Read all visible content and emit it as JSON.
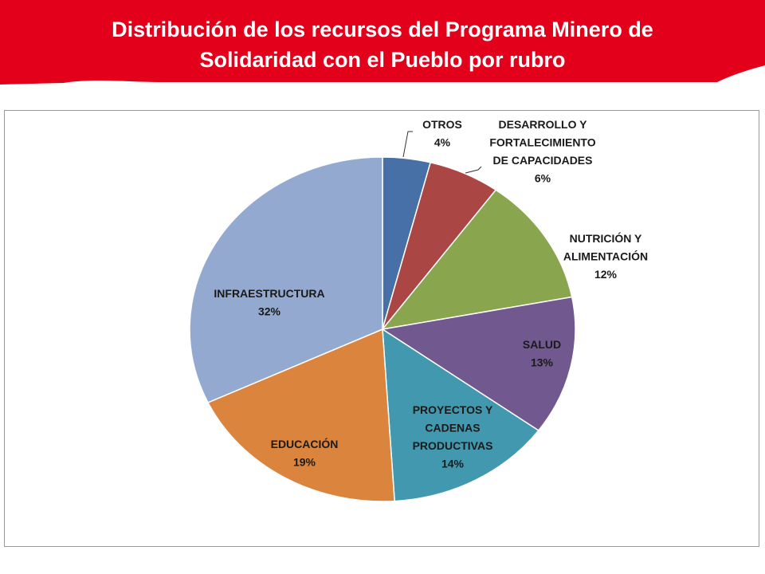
{
  "slide": {
    "title_line1": "Distribución de los recursos del Programa Minero de",
    "title_line2": "Solidaridad  con el Pueblo por rubro",
    "banner_color": "#e2001a"
  },
  "chart_data": {
    "type": "pie",
    "title": "Distribución de los recursos del Programa Minero de Solidaridad con el Pueblo por rubro",
    "slices": [
      {
        "name": "OTROS",
        "label_lines": [
          "OTROS",
          "4%"
        ],
        "value": 4,
        "percent_label": "4%",
        "color": "#4670a6"
      },
      {
        "name": "DESARROLLO Y FORTALECIMIENTO DE CAPACIDADES",
        "label_lines": [
          "DESARROLLO Y",
          "FORTALECIMIENTO",
          "DE CAPACIDADES",
          "6%"
        ],
        "value": 6,
        "percent_label": "6%",
        "color": "#aa4744"
      },
      {
        "name": "NUTRICIÓN Y ALIMENTACIÓN",
        "label_lines": [
          "NUTRICIÓN Y",
          "ALIMENTACIÓN",
          "12%"
        ],
        "value": 12,
        "percent_label": "12%",
        "color": "#89a54e"
      },
      {
        "name": "SALUD",
        "label_lines": [
          "SALUD",
          "13%"
        ],
        "value": 13,
        "percent_label": "13%",
        "color": "#71588f"
      },
      {
        "name": "PROYECTOS Y CADENAS PRODUCTIVAS",
        "label_lines": [
          "PROYECTOS Y",
          "CADENAS",
          "PRODUCTIVAS",
          "14%"
        ],
        "value": 14,
        "percent_label": "14%",
        "color": "#4198af"
      },
      {
        "name": "EDUCACIÓN",
        "label_lines": [
          "EDUCACIÓN",
          "19%"
        ],
        "value": 19,
        "percent_label": "19%",
        "color": "#db843d"
      },
      {
        "name": "INFRAESTRUCTURA",
        "label_lines": [
          "INFRAESTRUCTURA",
          "32%"
        ],
        "value": 32,
        "percent_label": "32%",
        "color": "#93a9cf"
      }
    ]
  }
}
